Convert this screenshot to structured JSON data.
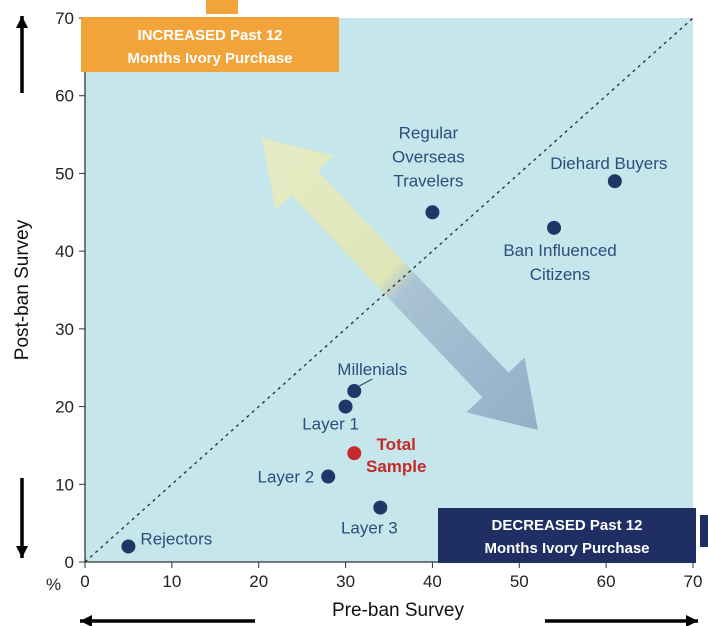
{
  "chart_data": {
    "type": "scatter",
    "xlabel": "Pre-ban Survey",
    "ylabel": "Post-ban Survey",
    "unit_label": "%",
    "xlim": [
      0,
      70
    ],
    "ylim": [
      0,
      70
    ],
    "xticks": [
      0,
      10,
      20,
      30,
      40,
      50,
      60,
      70
    ],
    "yticks": [
      0,
      10,
      20,
      30,
      40,
      50,
      60,
      70
    ],
    "grid": false,
    "diagonal_reference": true,
    "colors": {
      "plot_background": "#c5e6ea",
      "point": "#1f3768",
      "highlight_point": "#c42a2a",
      "increased_box": "#f0a43a",
      "decreased_box": "#1f2f63",
      "arrow_green": "#e4e9b8",
      "arrow_blue": "#93b0ca"
    },
    "points": [
      {
        "label": "Rejectors",
        "x": 5,
        "y": 2
      },
      {
        "label": "Layer 2",
        "x": 28,
        "y": 11
      },
      {
        "label": "Layer 1",
        "x": 30,
        "y": 20
      },
      {
        "label": "Millenials",
        "x": 31,
        "y": 22
      },
      {
        "label": "Total Sample",
        "x": 31,
        "y": 14,
        "highlight": true
      },
      {
        "label": "Layer 3",
        "x": 34,
        "y": 7
      },
      {
        "label": "Regular Overseas Travelers",
        "x": 40,
        "y": 45
      },
      {
        "label": "Ban Influenced Citizens",
        "x": 54,
        "y": 43
      },
      {
        "label": "Diehard Buyers",
        "x": 61,
        "y": 49
      }
    ],
    "annotations": {
      "increased": [
        "INCREASED Past 12",
        "Months Ivory Purchase"
      ],
      "decreased": [
        "DECREASED Past 12",
        "Months Ivory Purchase"
      ]
    }
  }
}
